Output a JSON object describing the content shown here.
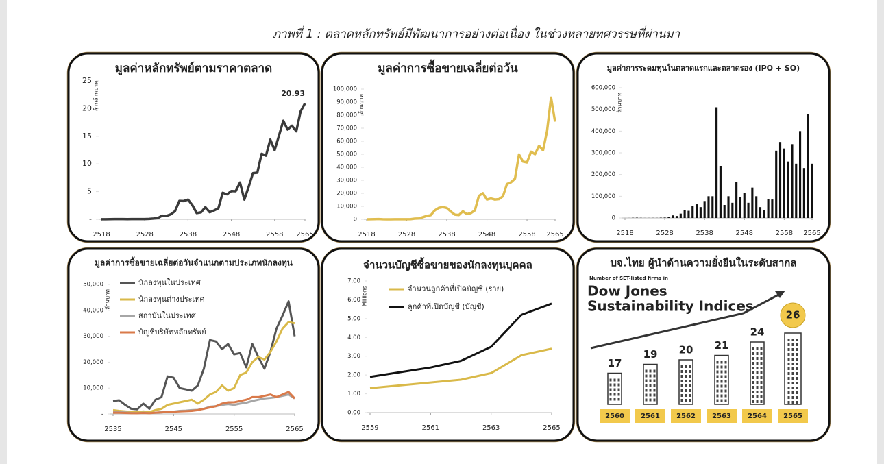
{
  "caption": "ภาพที่ 1 : ตลาดหลักทรัพย์มีพัฒนาการอย่างต่อเนื่อง ในช่วงหลายทศวรรษที่ผ่านมา",
  "chart_data": [
    {
      "type": "line",
      "title": "มูลค่าหลักทรัพย์ตามราคาตลาด",
      "y_label": "ล้านล้านบาท",
      "color": "#3a3a3a",
      "annotation": "20.93",
      "x": [
        2518,
        2519,
        2520,
        2521,
        2522,
        2523,
        2524,
        2525,
        2526,
        2527,
        2528,
        2529,
        2530,
        2531,
        2532,
        2533,
        2534,
        2535,
        2536,
        2537,
        2538,
        2539,
        2540,
        2541,
        2542,
        2543,
        2544,
        2545,
        2546,
        2547,
        2548,
        2549,
        2550,
        2551,
        2552,
        2553,
        2554,
        2555,
        2556,
        2557,
        2558,
        2559,
        2560,
        2561,
        2562,
        2563,
        2564,
        2565
      ],
      "values": [
        0.02,
        0.02,
        0.03,
        0.05,
        0.04,
        0.04,
        0.03,
        0.04,
        0.05,
        0.05,
        0.05,
        0.08,
        0.14,
        0.22,
        0.66,
        0.61,
        0.9,
        1.49,
        3.33,
        3.3,
        3.56,
        2.56,
        1.13,
        1.27,
        2.19,
        1.28,
        1.6,
        1.99,
        4.79,
        4.52,
        5.11,
        5.08,
        6.64,
        3.57,
        5.87,
        8.34,
        8.41,
        11.83,
        11.5,
        14.4,
        12.5,
        15.1,
        17.8,
        16.2,
        16.9,
        15.9,
        19.5,
        20.93
      ],
      "xlim": [
        2518,
        2565
      ],
      "xticks": [
        2518,
        2528,
        2538,
        2548,
        2558,
        2565
      ],
      "ylim": [
        0,
        25
      ],
      "yticks": [
        {
          "value": 0,
          "label": "-"
        },
        5,
        10,
        15,
        20,
        25
      ]
    },
    {
      "type": "line",
      "title": "มูลค่าการซื้อขายเฉลี่ยต่อวัน",
      "y_label": "ล้านบาท",
      "color": "#e0bd4f",
      "x": [
        2518,
        2519,
        2520,
        2521,
        2522,
        2523,
        2524,
        2525,
        2526,
        2527,
        2528,
        2529,
        2530,
        2531,
        2532,
        2533,
        2534,
        2535,
        2536,
        2537,
        2538,
        2539,
        2540,
        2541,
        2542,
        2543,
        2544,
        2545,
        2546,
        2547,
        2548,
        2549,
        2550,
        2551,
        2552,
        2553,
        2554,
        2555,
        2556,
        2557,
        2558,
        2559,
        2560,
        2561,
        2562,
        2563,
        2564,
        2565
      ],
      "values": [
        25,
        40,
        110,
        230,
        90,
        30,
        25,
        40,
        35,
        40,
        60,
        130,
        500,
        640,
        1600,
        2600,
        3200,
        6900,
        8800,
        9400,
        8700,
        6000,
        3600,
        3300,
        6200,
        4000,
        4800,
        6900,
        18000,
        20100,
        15200,
        16000,
        15200,
        15500,
        17700,
        27100,
        28400,
        31200,
        49800,
        44300,
        43700,
        51900,
        50000,
        56500,
        53000,
        67800,
        93500,
        75000
      ],
      "xlim": [
        2518,
        2565
      ],
      "xticks": [
        2518,
        2528,
        2538,
        2548,
        2558,
        2565
      ],
      "ylim": [
        0,
        100000
      ],
      "yticks": [
        0,
        {
          "value": 10000,
          "label": "10,000"
        },
        {
          "value": 20000,
          "label": "20,000"
        },
        {
          "value": 30000,
          "label": "30,000"
        },
        {
          "value": 40000,
          "label": "40,000"
        },
        {
          "value": 50000,
          "label": "50,000"
        },
        {
          "value": 60000,
          "label": "60,000"
        },
        {
          "value": 70000,
          "label": "70,000"
        },
        {
          "value": 80000,
          "label": "80,000"
        },
        {
          "value": 90000,
          "label": "90,000"
        },
        {
          "value": 100000,
          "label": "100,000"
        }
      ]
    },
    {
      "type": "bar",
      "title": "มูลค่าการระดมทุนในตลาดแรกและตลาดรอง (IPO + SO)",
      "y_label": "ล้านบาท",
      "color": "#111111",
      "x": [
        2518,
        2519,
        2520,
        2521,
        2522,
        2523,
        2524,
        2525,
        2526,
        2527,
        2528,
        2529,
        2530,
        2531,
        2532,
        2533,
        2534,
        2535,
        2536,
        2537,
        2538,
        2539,
        2540,
        2541,
        2542,
        2543,
        2544,
        2545,
        2546,
        2547,
        2548,
        2549,
        2550,
        2551,
        2552,
        2553,
        2554,
        2555,
        2556,
        2557,
        2558,
        2559,
        2560,
        2561,
        2562,
        2563,
        2564,
        2565
      ],
      "values": [
        100,
        300,
        1000,
        1500,
        800,
        400,
        500,
        700,
        600,
        1500,
        2000,
        3500,
        12000,
        9000,
        20000,
        36000,
        33000,
        55000,
        63000,
        50000,
        78000,
        100000,
        100000,
        510000,
        240000,
        60000,
        100000,
        70000,
        165000,
        95000,
        115000,
        70000,
        140000,
        100000,
        50000,
        35000,
        88000,
        85000,
        310000,
        350000,
        320000,
        260000,
        340000,
        250000,
        400000,
        230000,
        480000,
        250000
      ],
      "xlim": [
        2518,
        2565
      ],
      "xticks": [
        2518,
        2528,
        2538,
        2548,
        2558,
        2565
      ],
      "ylim": [
        0,
        600000
      ],
      "yticks": [
        0,
        {
          "value": 100000,
          "label": "100,000"
        },
        {
          "value": 200000,
          "label": "200,000"
        },
        {
          "value": 300000,
          "label": "300,000"
        },
        {
          "value": 400000,
          "label": "400,000"
        },
        {
          "value": 500000,
          "label": "500,000"
        },
        {
          "value": 600000,
          "label": "600,000"
        }
      ]
    },
    {
      "type": "line",
      "title": "มูลค่าการซื้อขายเฉลี่ยต่อวันจำแนกตามประเภทนักลงทุน",
      "y_label": "ล้านบาท",
      "legend": "upper left",
      "x": [
        2535,
        2536,
        2537,
        2538,
        2539,
        2540,
        2541,
        2542,
        2543,
        2544,
        2545,
        2546,
        2547,
        2548,
        2549,
        2550,
        2551,
        2552,
        2553,
        2554,
        2555,
        2556,
        2557,
        2558,
        2559,
        2560,
        2561,
        2562,
        2563,
        2564,
        2565
      ],
      "series": [
        {
          "name": "นักลงทุนในประเทศ",
          "color": "#555555",
          "values": [
            5000,
            5300,
            3500,
            2000,
            1800,
            4000,
            2000,
            5500,
            6500,
            14500,
            14000,
            10000,
            9500,
            9000,
            11000,
            17500,
            28500,
            28000,
            25000,
            27000,
            23000,
            23500,
            18000,
            27000,
            22000,
            17500,
            24000,
            33000,
            38000,
            43500,
            30000
          ]
        },
        {
          "name": "นักลงทุนต่างประเทศ",
          "color": "#d9b949",
          "values": [
            1500,
            1200,
            1000,
            800,
            700,
            1000,
            700,
            1500,
            2000,
            3500,
            4000,
            4500,
            5000,
            5500,
            4000,
            5500,
            7500,
            8500,
            11000,
            9000,
            10000,
            15000,
            16000,
            20000,
            22000,
            21000,
            24000,
            28000,
            33000,
            35500,
            35000
          ]
        },
        {
          "name": "สถาบันในประเทศ",
          "color": "#a6a6a6",
          "values": [
            800,
            700,
            600,
            400,
            300,
            500,
            300,
            500,
            700,
            800,
            900,
            1200,
            1300,
            1500,
            1600,
            2000,
            2800,
            3000,
            3500,
            3800,
            3500,
            4000,
            4300,
            5000,
            5500,
            6000,
            6200,
            6500,
            7000,
            7500,
            6000
          ]
        },
        {
          "name": "บัญชีบริษัทหลักทรัพย์",
          "color": "#d97a4a",
          "values": [
            500,
            500,
            400,
            300,
            300,
            400,
            300,
            500,
            600,
            800,
            900,
            1000,
            1100,
            1200,
            1500,
            2000,
            2500,
            3000,
            4000,
            4500,
            4500,
            5000,
            5500,
            6500,
            6500,
            7000,
            7500,
            6500,
            7500,
            8500,
            6000
          ]
        }
      ],
      "xlim": [
        2535,
        2565
      ],
      "xticks": [
        2535,
        2545,
        2555,
        2565
      ],
      "ylim": [
        0,
        50000
      ],
      "yticks": [
        {
          "value": 0,
          "label": "-"
        },
        {
          "value": 10000,
          "label": "10,000"
        },
        {
          "value": 20000,
          "label": "20,000"
        },
        {
          "value": 30000,
          "label": "30,000"
        },
        {
          "value": 40000,
          "label": "40,000"
        },
        {
          "value": 50000,
          "label": "50,000"
        }
      ]
    },
    {
      "type": "line",
      "title": "จำนวนบัญชีซื้อขายของนักลงทุนบุคคล",
      "y_label": "Millions",
      "legend": "upper left",
      "x": [
        2559,
        2560,
        2561,
        2562,
        2563,
        2564,
        2565
      ],
      "series": [
        {
          "name": "จำนวนลูกค้าที่เปิดบัญชี (ราย)",
          "color": "#d9b949",
          "values": [
            1.3,
            1.45,
            1.6,
            1.75,
            2.1,
            3.05,
            3.4
          ]
        },
        {
          "name": "ลูกค้าที่เปิดบัญชี (บัญชี)",
          "color": "#111111",
          "values": [
            1.9,
            2.15,
            2.4,
            2.75,
            3.5,
            5.2,
            5.8
          ]
        }
      ],
      "xlim": [
        2559,
        2565
      ],
      "xticks": [
        2559,
        2561,
        2563,
        2565
      ],
      "ylim": [
        0,
        7
      ],
      "yticks": [
        {
          "value": 0,
          "label": "0.00"
        },
        {
          "value": 1,
          "label": "1.00"
        },
        {
          "value": 2,
          "label": "2.00"
        },
        {
          "value": 3,
          "label": "3.00"
        },
        {
          "value": 4,
          "label": "4.00"
        },
        {
          "value": 5,
          "label": "5.00"
        },
        {
          "value": 6,
          "label": "6.00"
        },
        {
          "value": 7,
          "label": "7.00"
        }
      ]
    },
    {
      "type": "bar",
      "title": "บจ.ไทย ผู้นำด้านความยั่งยืนในระดับสากล",
      "subtitle": "Number of SET-listed firms in",
      "heading": [
        "Dow Jones",
        "Sustainability Indices"
      ],
      "color": "#f2c94c",
      "categories": [
        "2560",
        "2561",
        "2562",
        "2563",
        "2564",
        "2565"
      ],
      "values": [
        17,
        19,
        20,
        21,
        24,
        26
      ]
    }
  ]
}
